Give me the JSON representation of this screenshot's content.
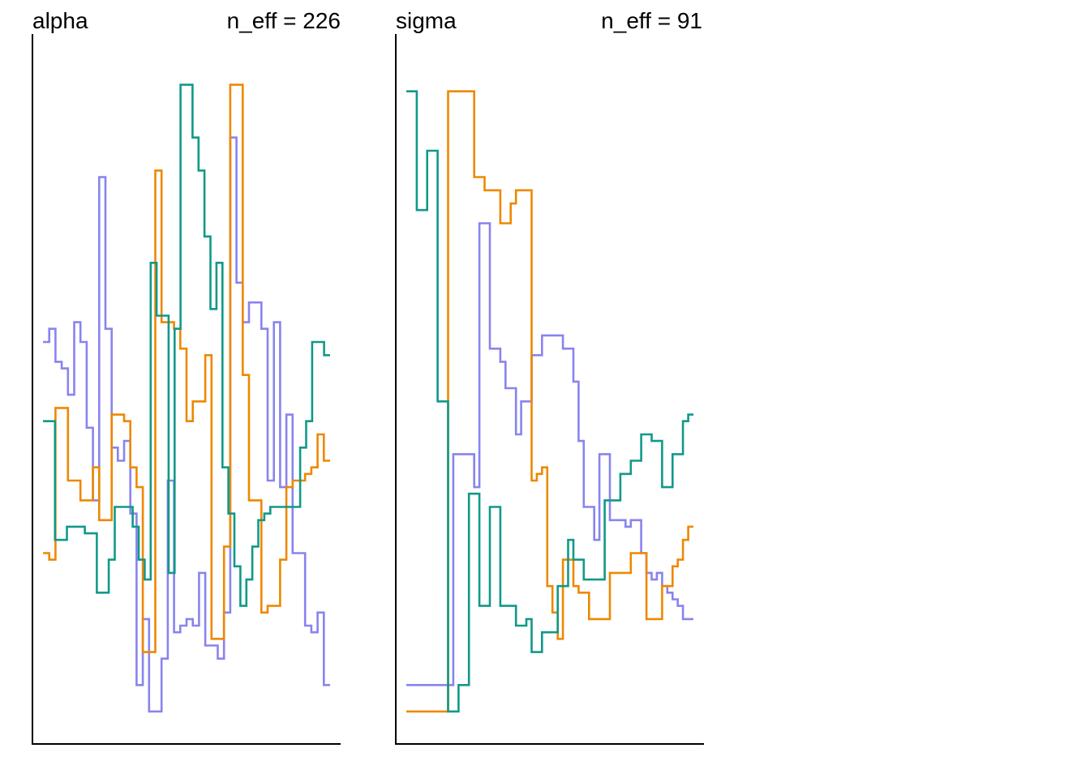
{
  "chart_data": [
    {
      "type": "line",
      "step": true,
      "title": "alpha",
      "annotation": "n_eff = 226",
      "xlabel": "",
      "ylabel": "",
      "xlim": [
        0,
        31
      ],
      "ylim": [
        0,
        100
      ],
      "grid": false,
      "series": [
        {
          "color": "#8884EE",
          "values": [
            57,
            59,
            54,
            53,
            49,
            60,
            57,
            44,
            33,
            82,
            59,
            41,
            39,
            42,
            31,
            5,
            15,
            1,
            1,
            9,
            36,
            13,
            14,
            15,
            14,
            22,
            11,
            11,
            9,
            16,
            88,
            66,
            60,
            63,
            63,
            59,
            36,
            60,
            35,
            46,
            25,
            25,
            14,
            13,
            16,
            5
          ]
        },
        {
          "color": "#EE8800",
          "values": [
            25,
            24,
            47,
            47,
            36,
            36,
            33,
            33,
            38,
            30,
            30,
            46,
            46,
            45,
            38,
            35,
            10,
            10,
            83,
            60,
            60,
            59,
            56,
            45,
            48,
            48,
            55,
            12,
            12,
            26,
            96,
            96,
            52,
            33,
            33,
            16,
            17,
            17,
            24,
            35,
            36,
            36,
            37,
            38,
            43,
            39
          ]
        },
        {
          "color": "#119988",
          "values": [
            45,
            45,
            27,
            27,
            29,
            29,
            29,
            28,
            28,
            19,
            19,
            24,
            32,
            32,
            32,
            29,
            24,
            21,
            69,
            61,
            61,
            22,
            59,
            96,
            96,
            88,
            83,
            73,
            62,
            69,
            38,
            31,
            23,
            17,
            21,
            26,
            30,
            31,
            32,
            32,
            32,
            32,
            32,
            41,
            45,
            57,
            57,
            55
          ]
        }
      ]
    },
    {
      "type": "line",
      "step": true,
      "title": "sigma",
      "annotation": "n_eff = 91",
      "xlabel": "",
      "ylabel": "",
      "xlim": [
        0,
        31
      ],
      "ylim": [
        0,
        100
      ],
      "grid": false,
      "series": [
        {
          "color": "#8884EE",
          "values": [
            5,
            5,
            5,
            5,
            5,
            5,
            5,
            5,
            5,
            40,
            40,
            40,
            40,
            35,
            75,
            75,
            56,
            56,
            54,
            50,
            50,
            43,
            48,
            48,
            55,
            55,
            58,
            58,
            58,
            58,
            56,
            56,
            51,
            42,
            32,
            32,
            27,
            40,
            40,
            30,
            30,
            30,
            29,
            30,
            30,
            25,
            22,
            21,
            22,
            20,
            19,
            18,
            17,
            15,
            15
          ]
        },
        {
          "color": "#EE8800",
          "values": [
            1,
            1,
            1,
            1,
            1,
            1,
            1,
            1,
            95,
            95,
            95,
            95,
            95,
            82,
            82,
            80,
            80,
            80,
            75,
            75,
            78,
            80,
            80,
            80,
            36,
            37,
            38,
            20,
            16,
            12,
            24,
            24,
            20,
            19,
            19,
            15,
            15,
            15,
            15,
            22,
            22,
            22,
            22,
            25,
            25,
            25,
            15,
            15,
            15,
            20,
            20,
            23,
            24,
            27,
            29
          ]
        },
        {
          "color": "#119988",
          "values": [
            95,
            95,
            77,
            77,
            86,
            86,
            48,
            48,
            1,
            1,
            5,
            5,
            34,
            34,
            17,
            17,
            32,
            32,
            17,
            17,
            17,
            14,
            14,
            15,
            10,
            10,
            13,
            13,
            13,
            20,
            20,
            27,
            24,
            24,
            21,
            21,
            21,
            21,
            33,
            33,
            33,
            37,
            37,
            39,
            39,
            43,
            43,
            42,
            42,
            35,
            35,
            40,
            40,
            45,
            46
          ]
        }
      ]
    }
  ]
}
